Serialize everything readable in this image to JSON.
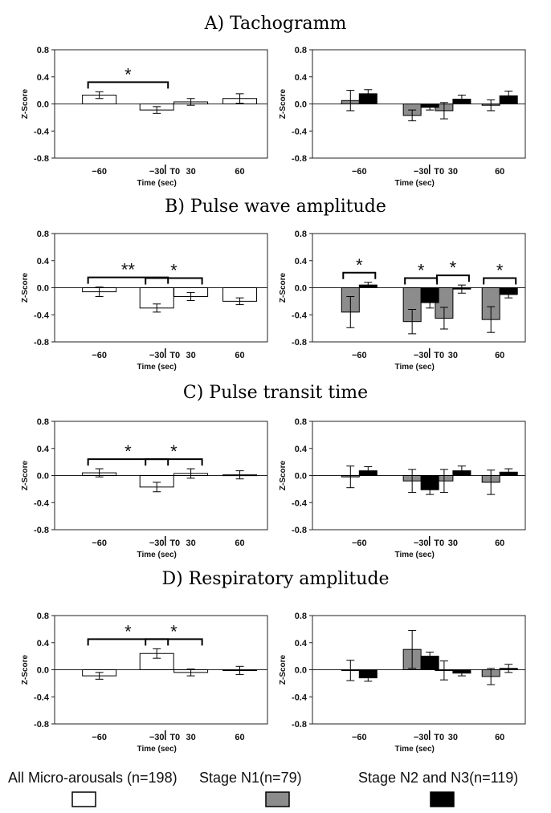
{
  "panel_titles": [
    "A) Tachogramm",
    "B) Pulse wave amplitude",
    "C) Pulse transit time",
    "D) Respiratory amplitude"
  ],
  "legend": [
    {
      "label": "All Micro-arousals (n=198)",
      "color": "#ffffff"
    },
    {
      "label": "Stage N1(n=79)",
      "color": "#8c8c8c"
    },
    {
      "label": "Stage N2 and N3(n=119)",
      "color": "#000000"
    }
  ],
  "chart_data": [
    {
      "type": "bar",
      "panel": "A) Tachogramm",
      "side": "left",
      "categories": [
        "-60",
        "-30",
        "30",
        "60"
      ],
      "marker": "T0",
      "xlabel": "Time (sec)",
      "ylabel": "Z-Score",
      "ylim": [
        -0.8,
        0.8
      ],
      "yticks": [
        "0.8",
        "0.4",
        "0.0",
        "-0.4",
        "-0.8"
      ],
      "series": [
        {
          "name": "All Micro-arousals (n=198)",
          "values": [
            0.13,
            -0.09,
            0.03,
            0.08
          ],
          "err": [
            0.05,
            0.05,
            0.05,
            0.07
          ]
        }
      ],
      "significance": [
        {
          "from": "-60",
          "to": "-30",
          "label": "*"
        }
      ]
    },
    {
      "type": "bar",
      "panel": "A) Tachogramm",
      "side": "right",
      "categories": [
        "-60",
        "-30",
        "30",
        "60"
      ],
      "marker": "T0",
      "xlabel": "Time (sec)",
      "ylabel": "Z-Score",
      "ylim": [
        -0.8,
        0.8
      ],
      "yticks": [
        "0.8",
        "0.4",
        "0.0",
        "-0.4",
        "-0.8"
      ],
      "series": [
        {
          "name": "Stage N1(n=79)",
          "values": [
            0.05,
            -0.17,
            -0.1,
            -0.02
          ],
          "err": [
            0.15,
            0.08,
            0.12,
            0.08
          ]
        },
        {
          "name": "Stage N2 and N3(n=119)",
          "values": [
            0.15,
            -0.05,
            0.07,
            0.12
          ],
          "err": [
            0.06,
            0.04,
            0.06,
            0.07
          ]
        }
      ],
      "significance": []
    },
    {
      "type": "bar",
      "panel": "B) Pulse wave amplitude",
      "side": "left",
      "categories": [
        "-60",
        "-30",
        "30",
        "60"
      ],
      "marker": "T0",
      "xlabel": "Time (sec)",
      "ylabel": "Z-Score",
      "ylim": [
        -0.8,
        0.8
      ],
      "yticks": [
        "0.8",
        "0.4",
        "0.0",
        "-0.4",
        "-0.8"
      ],
      "series": [
        {
          "name": "All Micro-arousals (n=198)",
          "values": [
            -0.06,
            -0.3,
            -0.13,
            -0.2
          ],
          "err": [
            0.07,
            0.06,
            0.06,
            0.05
          ]
        }
      ],
      "significance": [
        {
          "from": "-60",
          "to": "-30",
          "label": "**"
        },
        {
          "from": "-30",
          "to": "30",
          "label": "*"
        }
      ]
    },
    {
      "type": "bar",
      "panel": "B) Pulse wave amplitude",
      "side": "right",
      "categories": [
        "-60",
        "-30",
        "30",
        "60"
      ],
      "marker": "T0",
      "xlabel": "Time (sec)",
      "ylabel": "Z-Score",
      "ylim": [
        -0.8,
        0.8
      ],
      "yticks": [
        "0.8",
        "0.4",
        "0.0",
        "-0.4",
        "-0.8"
      ],
      "series": [
        {
          "name": "Stage N1(n=79)",
          "values": [
            -0.36,
            -0.5,
            -0.45,
            -0.47
          ],
          "err": [
            0.23,
            0.18,
            0.16,
            0.19
          ]
        },
        {
          "name": "Stage N2 and N3(n=119)",
          "values": [
            0.04,
            -0.22,
            -0.02,
            -0.1
          ],
          "err": [
            0.04,
            0.08,
            0.06,
            0.05
          ]
        }
      ],
      "significance": [
        {
          "from": "-60",
          "to": "-60",
          "label": "*"
        },
        {
          "from": "-30",
          "to": "-30",
          "label": "*"
        },
        {
          "from": "30",
          "to": "30",
          "label": "*"
        },
        {
          "from": "60",
          "to": "60",
          "label": "*"
        }
      ]
    },
    {
      "type": "bar",
      "panel": "C) Pulse transit time",
      "side": "left",
      "categories": [
        "-60",
        "-30",
        "30",
        "60"
      ],
      "marker": "T0",
      "xlabel": "Time (sec)",
      "ylabel": "Z-Score",
      "ylim": [
        -0.8,
        0.8
      ],
      "yticks": [
        "0.8",
        "0.4",
        "0.0",
        "-0.4",
        "-0.8"
      ],
      "series": [
        {
          "name": "All Micro-arousals (n=198)",
          "values": [
            0.04,
            -0.17,
            0.03,
            0.01
          ],
          "err": [
            0.06,
            0.07,
            0.07,
            0.06
          ]
        }
      ],
      "significance": [
        {
          "from": "-60",
          "to": "-30",
          "label": "*"
        },
        {
          "from": "-30",
          "to": "30",
          "label": "*"
        }
      ]
    },
    {
      "type": "bar",
      "panel": "C) Pulse transit time",
      "side": "right",
      "categories": [
        "-60",
        "-30",
        "30",
        "60"
      ],
      "marker": "T0",
      "xlabel": "Time (sec)",
      "ylabel": "Z-Score",
      "ylim": [
        -0.8,
        0.8
      ],
      "yticks": [
        "0.8",
        "0.4",
        "0.0",
        "-0.4",
        "-0.8"
      ],
      "series": [
        {
          "name": "Stage N1(n=79)",
          "values": [
            -0.02,
            -0.08,
            -0.08,
            -0.1
          ],
          "err": [
            0.16,
            0.17,
            0.17,
            0.18
          ]
        },
        {
          "name": "Stage N2 and N3(n=119)",
          "values": [
            0.07,
            -0.21,
            0.07,
            0.05
          ],
          "err": [
            0.06,
            0.07,
            0.07,
            0.05
          ]
        }
      ],
      "significance": []
    },
    {
      "type": "bar",
      "panel": "D) Respiratory amplitude",
      "side": "left",
      "categories": [
        "-60",
        "-30",
        "30",
        "60"
      ],
      "marker": "T0",
      "xlabel": "Time (sec)",
      "ylabel": "Z-Score",
      "ylim": [
        -0.8,
        0.8
      ],
      "yticks": [
        "0.8",
        "0.4",
        "0.0",
        "-0.4",
        "-0.8"
      ],
      "series": [
        {
          "name": "All Micro-arousals (n=198)",
          "values": [
            -0.09,
            0.24,
            -0.04,
            -0.01
          ],
          "err": [
            0.05,
            0.07,
            0.05,
            0.06
          ]
        }
      ],
      "significance": [
        {
          "from": "-60",
          "to": "-30",
          "label": "*"
        },
        {
          "from": "-30",
          "to": "30",
          "label": "*"
        }
      ]
    },
    {
      "type": "bar",
      "panel": "D) Respiratory amplitude",
      "side": "right",
      "categories": [
        "-60",
        "-30",
        "30",
        "60"
      ],
      "marker": "T0",
      "xlabel": "Time (sec)",
      "ylabel": "Z-Score",
      "ylim": [
        -0.8,
        0.8
      ],
      "yticks": [
        "0.8",
        "0.4",
        "0.0",
        "-0.4",
        "-0.8"
      ],
      "series": [
        {
          "name": "Stage N1(n=79)",
          "values": [
            -0.01,
            0.3,
            -0.01,
            -0.1
          ],
          "err": [
            0.15,
            0.28,
            0.14,
            0.12
          ]
        },
        {
          "name": "Stage N2 and N3(n=119)",
          "values": [
            -0.12,
            0.2,
            -0.05,
            0.02
          ],
          "err": [
            0.05,
            0.06,
            0.04,
            0.06
          ]
        }
      ],
      "significance": []
    }
  ]
}
